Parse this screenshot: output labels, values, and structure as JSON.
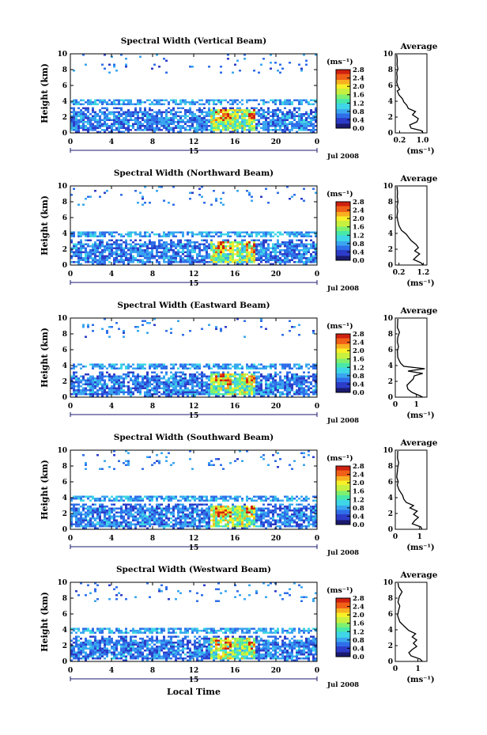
{
  "chart_data": {
    "type": "heatmap",
    "colorbar": {
      "unit": "(ms⁻¹)",
      "ticks": [
        "2.8",
        "2.4",
        "2.0",
        "1.6",
        "1.2",
        "0.8",
        "0.4",
        "0.0"
      ],
      "range": [
        0,
        2.8
      ],
      "colors": [
        "#1a1a6e",
        "#2c3cc8",
        "#2f6ee8",
        "#3aa6f0",
        "#3fd6e6",
        "#48e8a8",
        "#7ef070",
        "#c8f040",
        "#f8f028",
        "#f8b020",
        "#f06018",
        "#d02010"
      ]
    },
    "x_axis": {
      "ticks": [
        "0",
        "4",
        "8",
        "12",
        "16",
        "20",
        "0"
      ],
      "range": [
        0,
        24
      ],
      "day_label": "15",
      "date_label": "Jul 2008",
      "xlabel": "Local Time"
    },
    "y_axis": {
      "ylabel": "Height (km)",
      "ticks": [
        "0",
        "2",
        "4",
        "6",
        "8",
        "10"
      ],
      "range": [
        0,
        10
      ]
    },
    "average": {
      "title": "Average",
      "unit": "(ms⁻¹)"
    },
    "panels": [
      {
        "title": "Spectral Width (Vertical Beam)",
        "avg_xticks": [
          "0.2",
          "1.0"
        ],
        "avg_xrange": [
          0.05,
          1.15
        ],
        "avg_tickvals": [
          0.2,
          1.0
        ],
        "avg_profile": [
          [
            1.02,
            0
          ],
          [
            0.95,
            0.3
          ],
          [
            0.6,
            0.6
          ],
          [
            0.55,
            1.0
          ],
          [
            0.8,
            1.4
          ],
          [
            0.85,
            1.8
          ],
          [
            0.65,
            2.3
          ],
          [
            0.75,
            2.7
          ],
          [
            0.5,
            3.1
          ],
          [
            0.45,
            3.5
          ],
          [
            0.35,
            3.9
          ],
          [
            0.3,
            4.3
          ],
          [
            0.18,
            4.8
          ],
          [
            0.12,
            5.3
          ],
          [
            0.2,
            5.5
          ],
          [
            0.15,
            5.8
          ],
          [
            0.1,
            6.4
          ],
          [
            0.12,
            7.0
          ],
          [
            0.1,
            7.6
          ],
          [
            0.14,
            8.1
          ],
          [
            0.11,
            8.6
          ],
          [
            0.12,
            9.2
          ],
          [
            0.1,
            9.9
          ]
        ]
      },
      {
        "title": "Spectral Width (Northward Beam)",
        "avg_xticks": [
          "0.2",
          "1.2"
        ],
        "avg_xrange": [
          0.05,
          1.35
        ],
        "avg_tickvals": [
          0.2,
          1.2
        ],
        "avg_profile": [
          [
            1.2,
            0
          ],
          [
            1.1,
            0.3
          ],
          [
            0.8,
            0.7
          ],
          [
            0.9,
            1.0
          ],
          [
            1.05,
            1.4
          ],
          [
            0.85,
            1.8
          ],
          [
            1.0,
            2.2
          ],
          [
            0.9,
            2.6
          ],
          [
            0.7,
            3.1
          ],
          [
            0.6,
            3.5
          ],
          [
            0.5,
            3.9
          ],
          [
            0.3,
            4.4
          ],
          [
            0.2,
            5.0
          ],
          [
            0.15,
            5.6
          ],
          [
            0.12,
            6.2
          ],
          [
            0.15,
            6.8
          ],
          [
            0.12,
            7.4
          ],
          [
            0.16,
            8.0
          ],
          [
            0.13,
            8.6
          ],
          [
            0.14,
            9.2
          ],
          [
            0.12,
            9.9
          ]
        ]
      },
      {
        "title": "Spectral Width (Eastward Beam)",
        "avg_xticks": [
          "0",
          "1"
        ],
        "avg_xrange": [
          0,
          1.5
        ],
        "avg_tickvals": [
          0,
          1
        ],
        "avg_profile": [
          [
            1.3,
            0
          ],
          [
            1.15,
            0.2
          ],
          [
            0.8,
            0.6
          ],
          [
            0.6,
            1.0
          ],
          [
            0.55,
            1.5
          ],
          [
            0.7,
            1.9
          ],
          [
            0.85,
            2.3
          ],
          [
            0.9,
            2.7
          ],
          [
            1.3,
            3.0
          ],
          [
            0.6,
            3.3
          ],
          [
            1.4,
            3.6
          ],
          [
            0.4,
            3.9
          ],
          [
            0.25,
            4.3
          ],
          [
            0.12,
            5.0
          ],
          [
            0.1,
            5.8
          ],
          [
            0.15,
            6.4
          ],
          [
            0.1,
            7.0
          ],
          [
            0.12,
            7.6
          ],
          [
            0.2,
            8.2
          ],
          [
            0.1,
            8.8
          ],
          [
            0.12,
            9.9
          ]
        ]
      },
      {
        "title": "Spectral Width (Southward Beam)",
        "avg_xticks": [
          "0",
          "1"
        ],
        "avg_xrange": [
          0,
          1.3
        ],
        "avg_tickvals": [
          0,
          1
        ],
        "avg_profile": [
          [
            1.1,
            0
          ],
          [
            1.05,
            0.3
          ],
          [
            0.7,
            0.7
          ],
          [
            0.8,
            1.1
          ],
          [
            0.95,
            1.5
          ],
          [
            0.75,
            1.9
          ],
          [
            0.9,
            2.3
          ],
          [
            0.6,
            2.7
          ],
          [
            0.75,
            3.0
          ],
          [
            0.45,
            3.4
          ],
          [
            0.35,
            3.8
          ],
          [
            0.3,
            4.3
          ],
          [
            0.15,
            5.0
          ],
          [
            0.08,
            5.6
          ],
          [
            0.12,
            6.0
          ],
          [
            0.06,
            6.6
          ],
          [
            0.08,
            7.2
          ],
          [
            0.1,
            7.8
          ],
          [
            0.14,
            8.4
          ],
          [
            0.09,
            9.0
          ],
          [
            0.1,
            9.9
          ]
        ]
      },
      {
        "title": "Spectral Width (Westward Beam)",
        "avg_xticks": [
          "0",
          "1"
        ],
        "avg_xrange": [
          0,
          1.4
        ],
        "avg_tickvals": [
          0,
          1
        ],
        "avg_profile": [
          [
            1.2,
            0
          ],
          [
            1.1,
            0.3
          ],
          [
            0.7,
            0.7
          ],
          [
            0.6,
            1.1
          ],
          [
            0.75,
            1.5
          ],
          [
            0.95,
            1.9
          ],
          [
            0.8,
            2.3
          ],
          [
            0.95,
            2.7
          ],
          [
            0.75,
            3.1
          ],
          [
            0.9,
            3.5
          ],
          [
            0.6,
            3.9
          ],
          [
            0.45,
            4.3
          ],
          [
            0.2,
            5.0
          ],
          [
            0.1,
            5.8
          ],
          [
            0.15,
            6.5
          ],
          [
            0.2,
            7.0
          ],
          [
            0.12,
            7.5
          ],
          [
            0.18,
            8.2
          ],
          [
            0.3,
            8.8
          ],
          [
            0.15,
            9.4
          ],
          [
            0.12,
            9.9
          ]
        ]
      }
    ]
  }
}
